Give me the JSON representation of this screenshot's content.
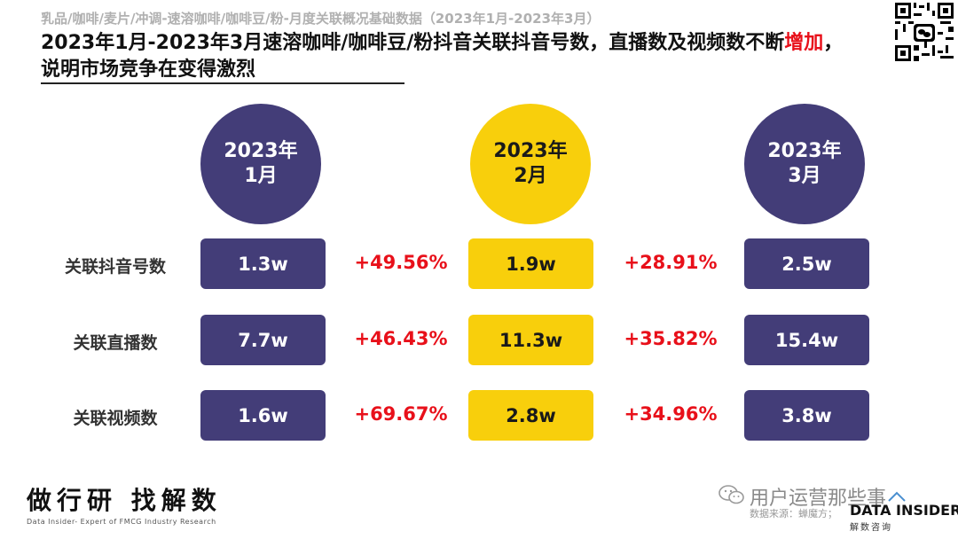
{
  "header": {
    "breadcrumb": "乳品/咖啡/麦片/冲调-速溶咖啡/咖啡豆/粉-月度关联概况基础数据（2023年1月-2023年3月）",
    "headline_pre": "2023年1月-2023年3月速溶咖啡/咖啡豆/粉抖音关联抖音号数，直播数及视频数不断",
    "headline_highlight": "增加",
    "headline_post": "，说明市场竞争在变得激烈"
  },
  "colors": {
    "purple": "#433d78",
    "yellow": "#f8cf0c",
    "red": "#e8101a"
  },
  "months": [
    {
      "year": "2023年",
      "month": "1月"
    },
    {
      "year": "2023年",
      "month": "2月"
    },
    {
      "year": "2023年",
      "month": "3月"
    }
  ],
  "rows": [
    {
      "label": "关联抖音号数",
      "v1": "1.3w",
      "g12": "+49.56%",
      "v2": "1.9w",
      "g23": "+28.91%",
      "v3": "2.5w"
    },
    {
      "label": "关联直播数",
      "v1": "7.7w",
      "g12": "+46.43%",
      "v2": "11.3w",
      "g23": "+35.82%",
      "v3": "15.4w"
    },
    {
      "label": "关联视频数",
      "v1": "1.6w",
      "g12": "+69.67%",
      "v2": "2.8w",
      "g23": "+34.96%",
      "v3": "3.8w"
    }
  ],
  "footer": {
    "slogan": "做行研 找解数",
    "subtitle": "Data Insider- Expert of FMCG Industry Research",
    "watermark": "用户运营那些事",
    "source": "数据来源：蝉魔方；",
    "brand": "DATA INSIDER",
    "brand_sub": "解数咨询"
  },
  "icons": {
    "qr": "qr-code-icon",
    "wechat": "wechat-icon",
    "brand_mark": "house-roof-icon"
  }
}
